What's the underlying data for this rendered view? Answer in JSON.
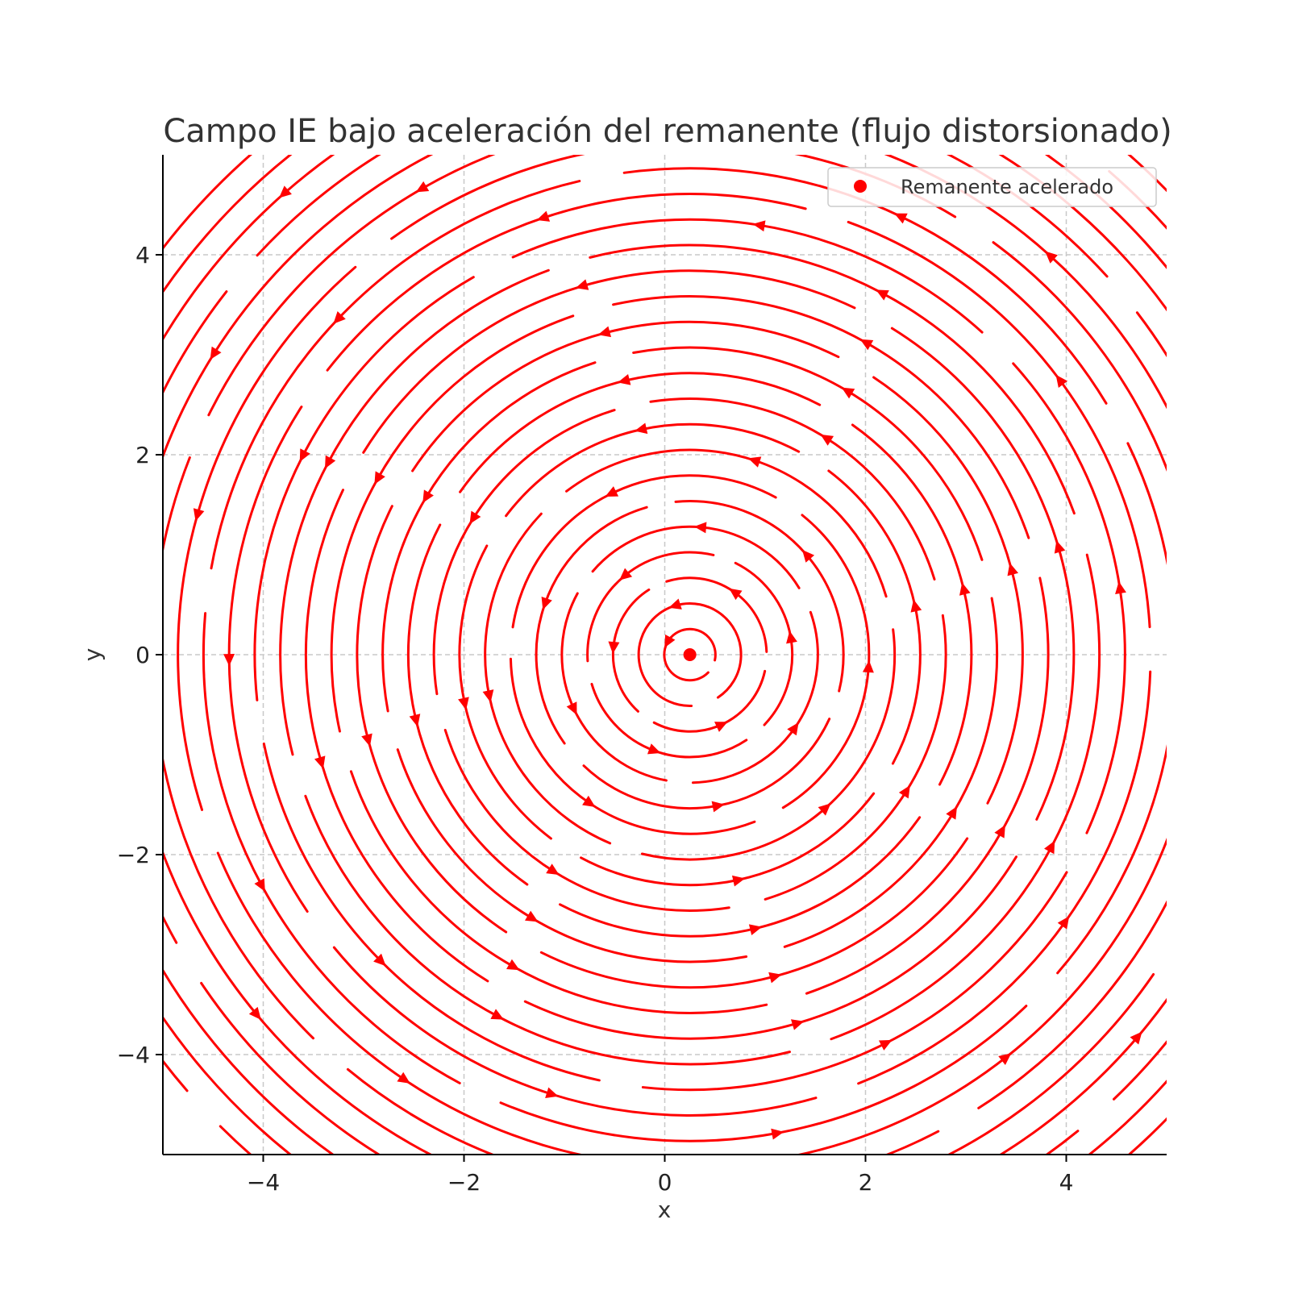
{
  "chart_data": {
    "type": "streamplot",
    "title": "Campo IE bajo aceleración del remanente (flujo distorsionado)",
    "xlabel": "x",
    "ylabel": "y",
    "xlim": [
      -5,
      5
    ],
    "ylim": [
      -5,
      5
    ],
    "x_ticks": [
      -4,
      -2,
      0,
      2,
      4
    ],
    "y_ticks": [
      -4,
      -2,
      0,
      2,
      4
    ],
    "x_tick_labels": [
      "−4",
      "−2",
      "0",
      "2",
      "4"
    ],
    "y_tick_labels": [
      "−4",
      "−2",
      "0",
      "2",
      "4"
    ],
    "grid": true,
    "grid_style": "dashed",
    "legend_position": "top-right",
    "flow": {
      "pattern": "counter-clockwise vortex",
      "center": [
        0.25,
        0.0
      ],
      "color": "#ff0000"
    },
    "series": [
      {
        "name": "Remanente acelerado",
        "type": "point",
        "x": 0.25,
        "y": 0.0,
        "color": "#ff0000"
      }
    ]
  }
}
